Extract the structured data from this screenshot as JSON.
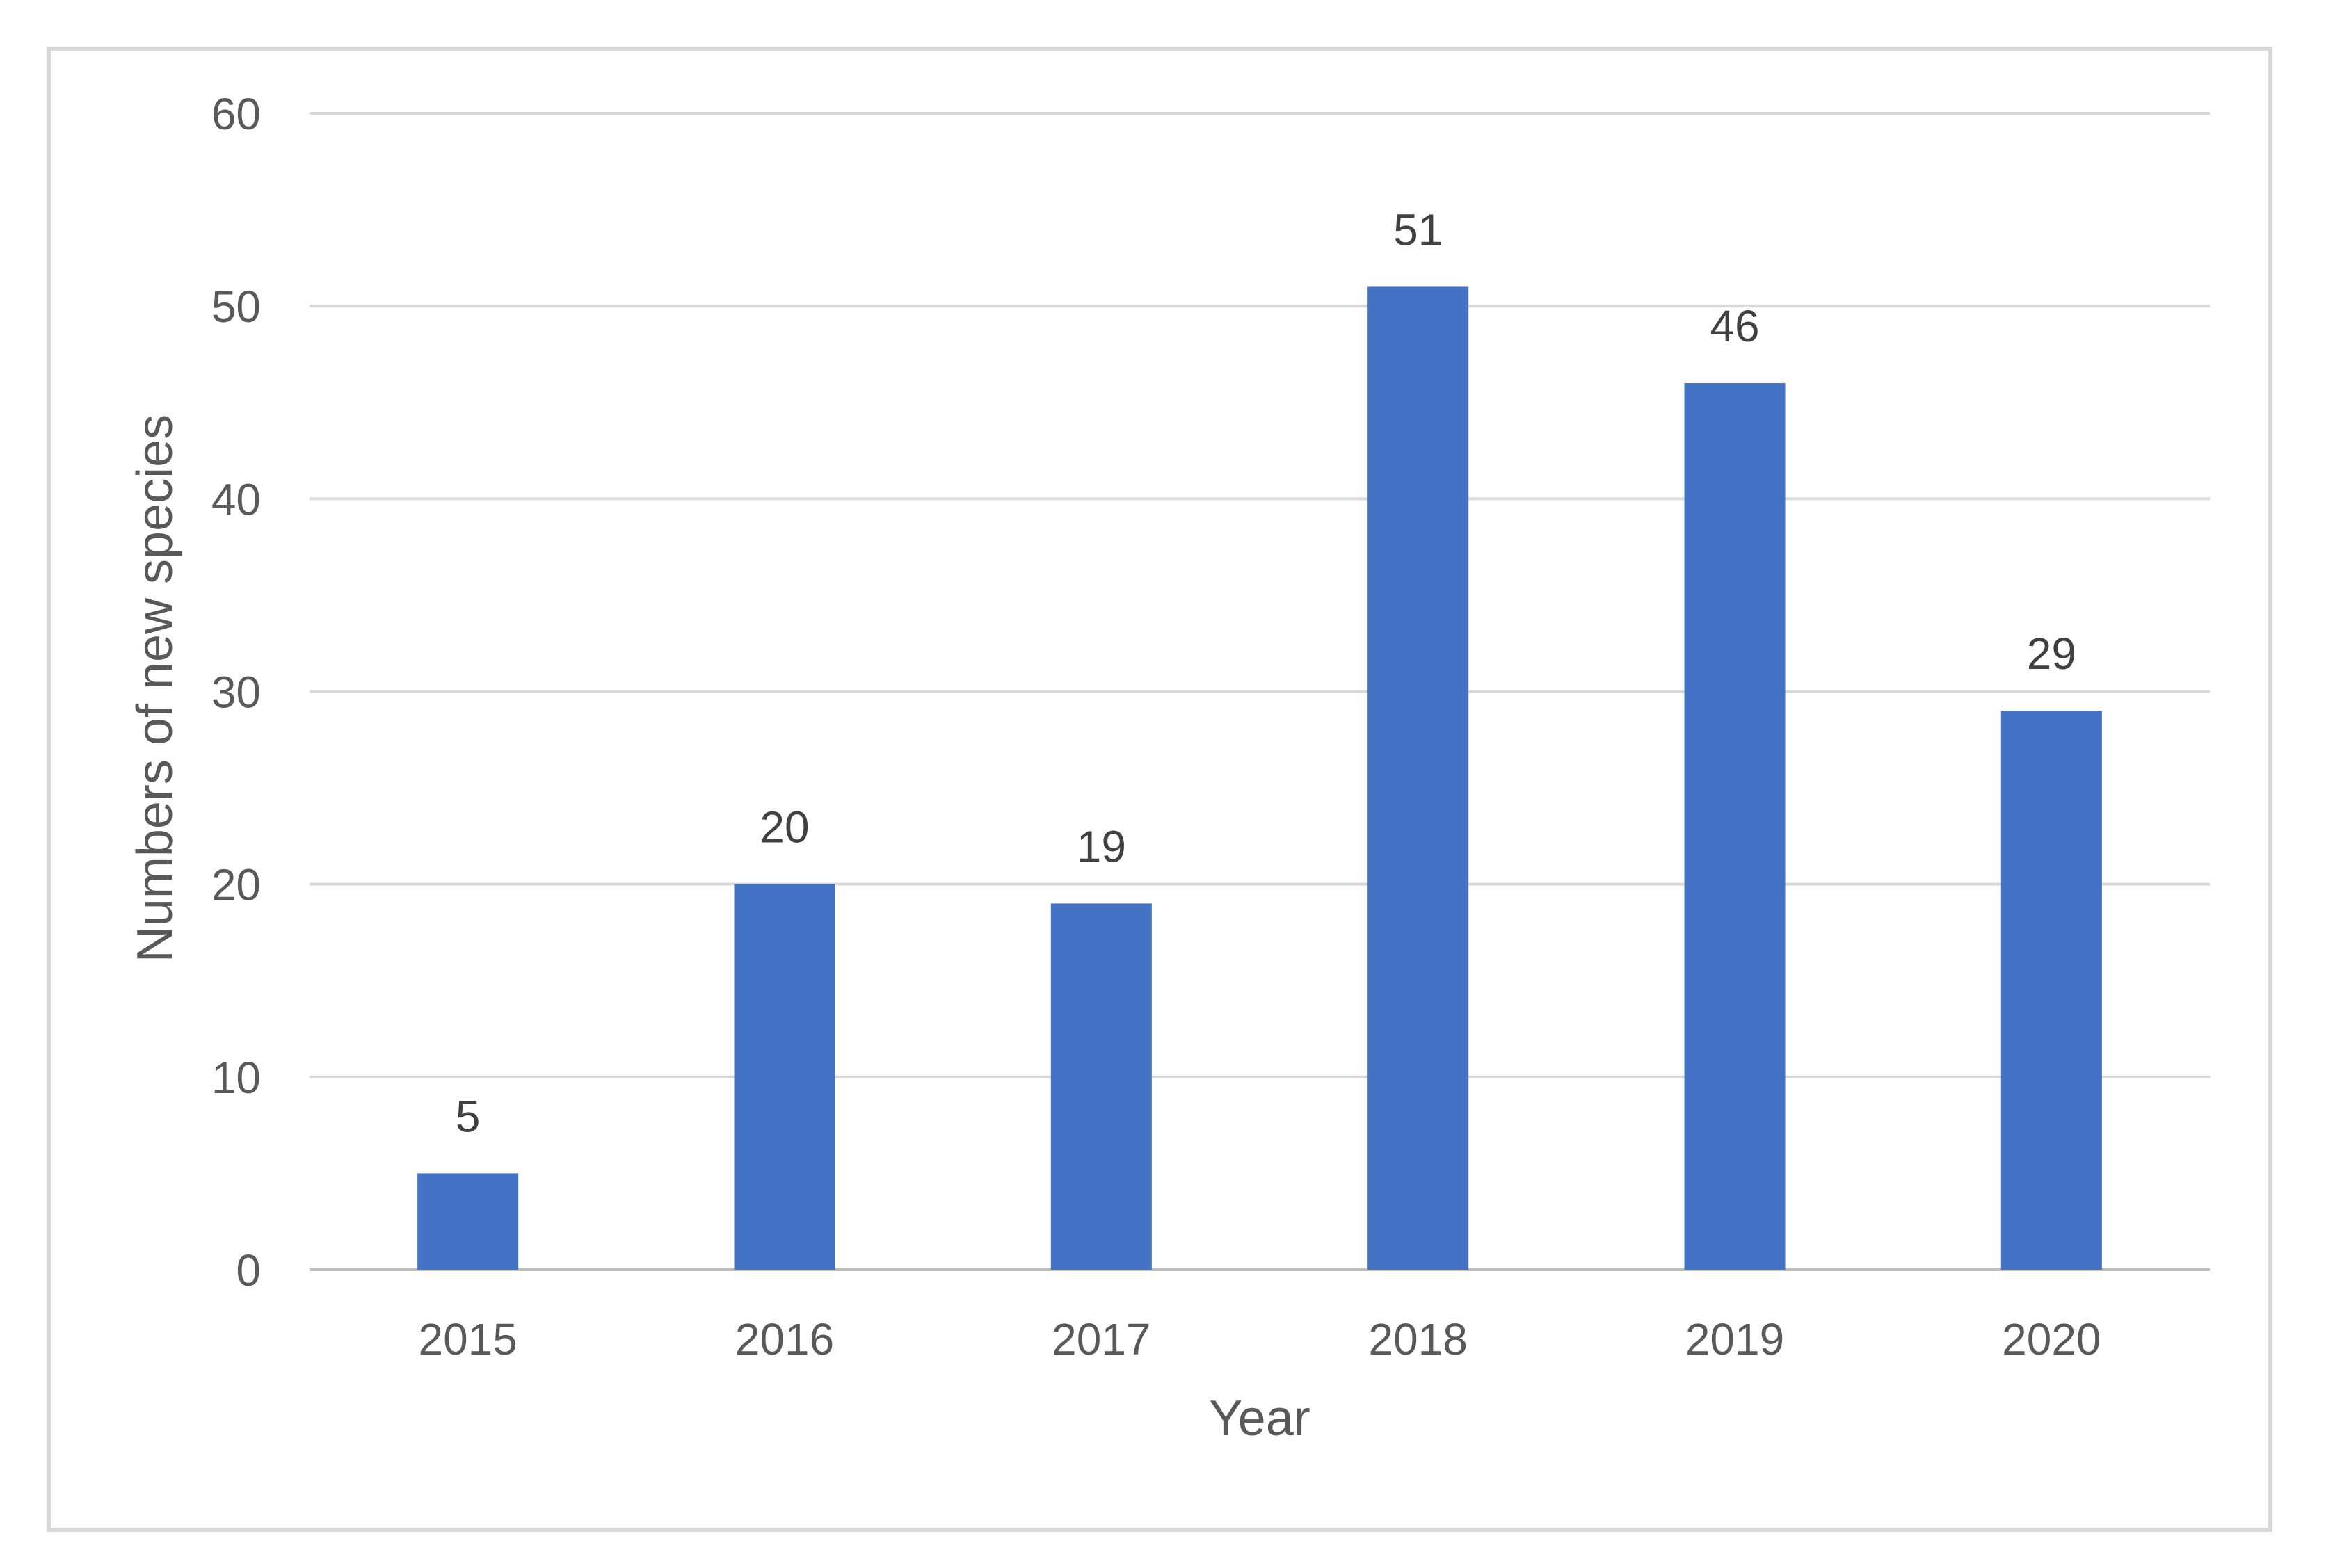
{
  "chart_data": {
    "type": "bar",
    "title": "",
    "xlabel": "Year",
    "ylabel": "Numbers of new species",
    "categories": [
      "2015",
      "2016",
      "2017",
      "2018",
      "2019",
      "2020"
    ],
    "values": [
      5,
      20,
      19,
      51,
      46,
      29
    ],
    "data_labels": [
      "5",
      "20",
      "19",
      "51",
      "46",
      "29"
    ],
    "yticks": [
      0,
      10,
      20,
      30,
      40,
      50,
      60
    ],
    "ytick_labels": [
      "0",
      "10",
      "20",
      "30",
      "40",
      "50",
      "60"
    ],
    "ylim": [
      0,
      60
    ],
    "grid": "horizontal",
    "legend": "none",
    "colors": {
      "bar": "#4472C4",
      "gridline": "#D9D9D9",
      "axis_line": "#BFBFBF",
      "tick_label": "#595959",
      "data_label": "#404040",
      "axis_title": "#595959",
      "frame_border": "#D9D9D9",
      "background": "#FFFFFF"
    }
  }
}
